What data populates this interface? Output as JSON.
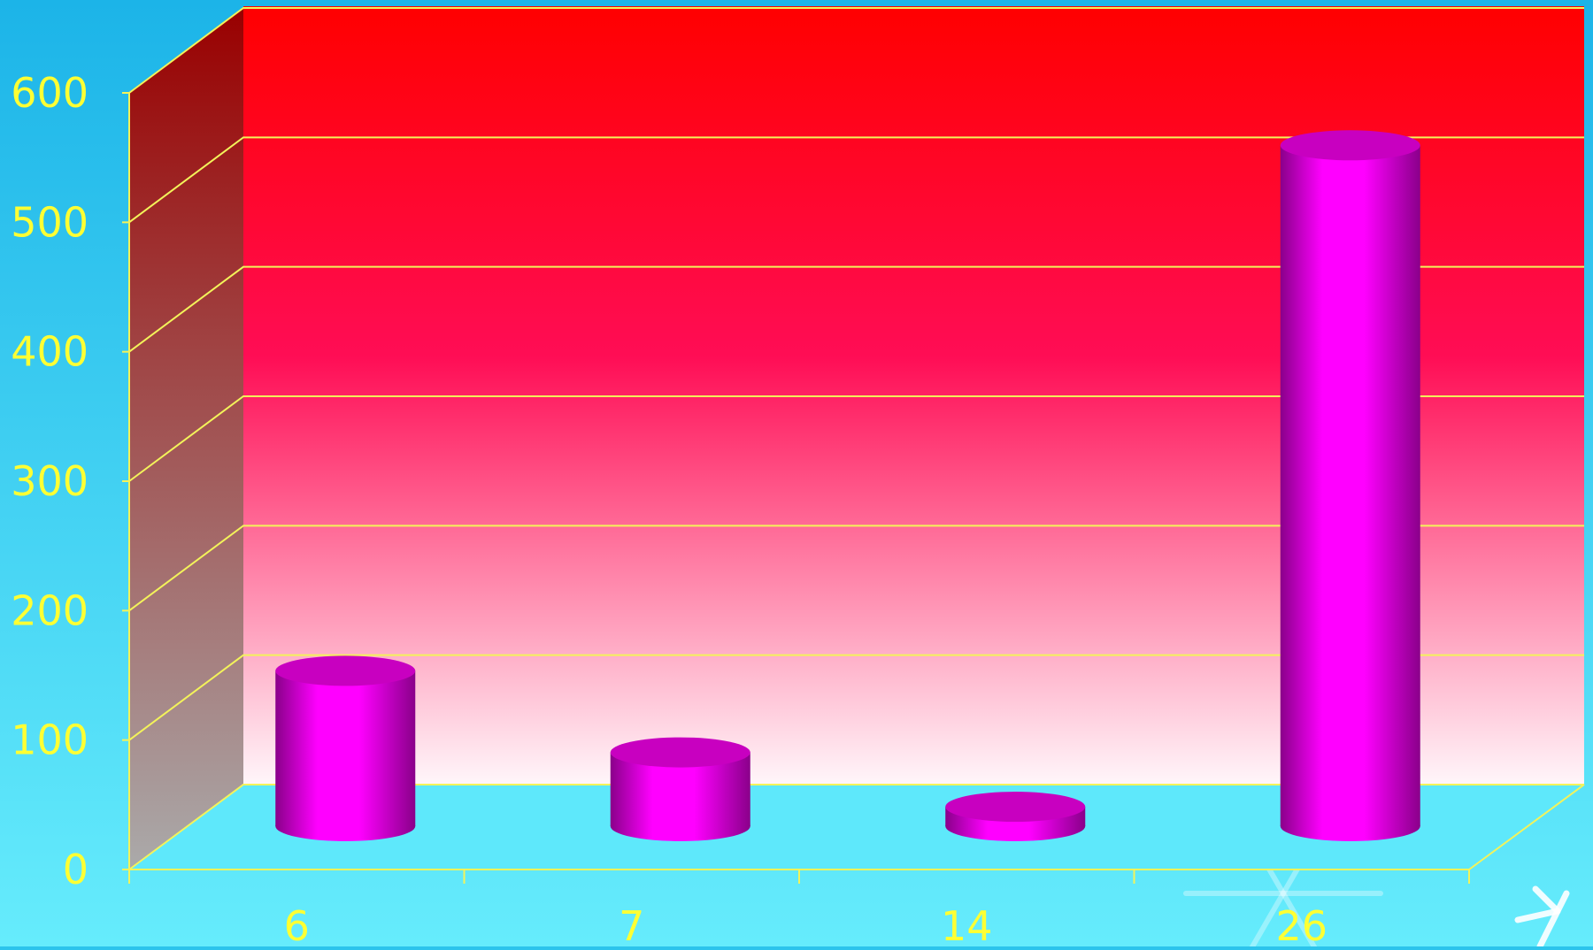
{
  "chart_data": {
    "type": "bar",
    "categories": [
      "6",
      "7",
      "14",
      "26"
    ],
    "values": [
      120,
      57,
      15,
      526
    ],
    "ylim": [
      0,
      600
    ],
    "yticks": [
      "0",
      "100",
      "200",
      "300",
      "400",
      "500",
      "600"
    ],
    "grid": true,
    "legend": "none",
    "title": "",
    "xlabel": "",
    "ylabel": ""
  },
  "colors": {
    "background_top": "#1cb4e8",
    "background_bottom": "#66ecfc",
    "wall_top": "#ff0000",
    "wall_mid": "#ff0d55",
    "wall_bottom": "#fff6fa",
    "side_wall_top": "#990000",
    "side_wall_bottom": "#aaaaaa",
    "floor": "#5ee8fb",
    "gridline": "#f3f35a",
    "axis_text": "#ffff33",
    "bar_body": "#ff00ff",
    "bar_shade": "#8a008a",
    "bar_top": "#c800c0"
  },
  "decoration": {
    "snowflake_icon": "snowflake-icon"
  }
}
